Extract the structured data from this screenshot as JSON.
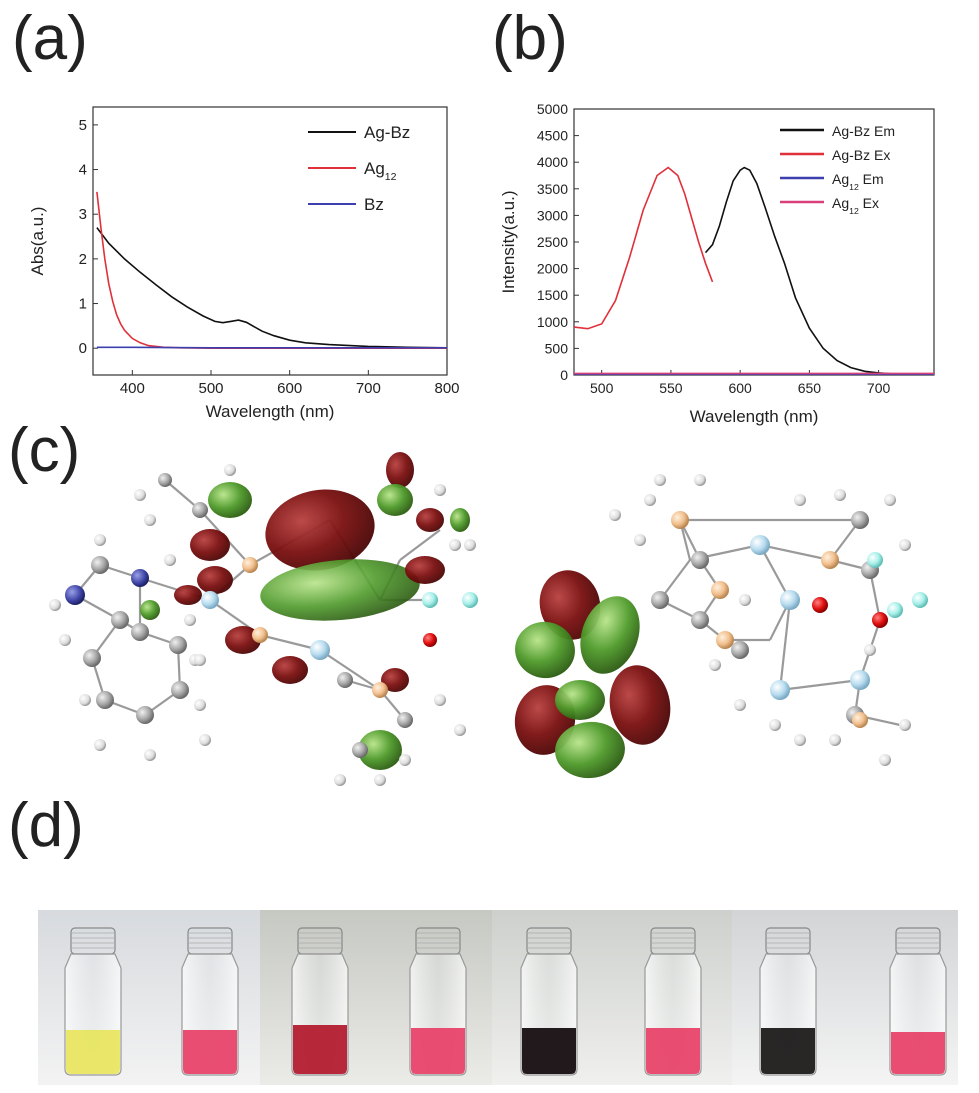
{
  "panel_labels": {
    "a": "(a)",
    "b": "(b)",
    "c": "(c)",
    "d": "(d)"
  },
  "colors": {
    "ag_bz": "#111111",
    "ag12": "#e0303a",
    "bz": "#3b3fb0",
    "ag12_ex": "#d8407a"
  },
  "chart_data": [
    {
      "type": "line",
      "panel": "(a)",
      "title": "",
      "xlabel": "Wavelength (nm)",
      "ylabel": "Abs(a.u.)",
      "xlim": [
        350,
        800
      ],
      "ylim": [
        -0.6,
        5.4
      ],
      "xticks": [
        400,
        500,
        600,
        700,
        800
      ],
      "yticks": [
        0,
        1,
        2,
        3,
        4,
        5
      ],
      "legend_position": "top-right",
      "series": [
        {
          "name": "Ag-Bz",
          "color": "#111111",
          "x": [
            355,
            370,
            390,
            410,
            430,
            450,
            470,
            490,
            505,
            515,
            525,
            535,
            545,
            555,
            565,
            580,
            600,
            620,
            650,
            700,
            750,
            800
          ],
          "y": [
            2.7,
            2.35,
            2.0,
            1.7,
            1.42,
            1.15,
            0.92,
            0.72,
            0.6,
            0.57,
            0.6,
            0.63,
            0.58,
            0.48,
            0.38,
            0.28,
            0.18,
            0.12,
            0.08,
            0.04,
            0.02,
            0.01
          ]
        },
        {
          "name": "Ag12",
          "name_base": "Ag",
          "name_sub": "12",
          "color": "#e0303a",
          "x": [
            355,
            360,
            365,
            370,
            375,
            380,
            385,
            390,
            400,
            410,
            420,
            440,
            460,
            500,
            600,
            700,
            800
          ],
          "y": [
            3.5,
            2.7,
            2.0,
            1.45,
            1.05,
            0.75,
            0.55,
            0.4,
            0.22,
            0.12,
            0.06,
            0.02,
            0.01,
            0.0,
            0.0,
            0.0,
            0.0
          ]
        },
        {
          "name": "Bz",
          "color": "#3b3fb0",
          "x": [
            355,
            400,
            500,
            600,
            700,
            800
          ],
          "y": [
            0.02,
            0.02,
            0.01,
            0.01,
            0.01,
            0.01
          ]
        }
      ]
    },
    {
      "type": "line",
      "panel": "(b)",
      "title": "",
      "xlabel": "Wavelength (nm)",
      "ylabel": "Intensity(a.u.)",
      "xlim": [
        480,
        740
      ],
      "ylim": [
        0,
        5000
      ],
      "xticks": [
        500,
        550,
        600,
        650,
        700
      ],
      "yticks": [
        0,
        500,
        1000,
        1500,
        2000,
        2500,
        3000,
        3500,
        4000,
        4500,
        5000
      ],
      "legend_position": "top-right",
      "series": [
        {
          "name": "Ag-Bz Em",
          "color": "#111111",
          "x": [
            575,
            580,
            585,
            590,
            595,
            600,
            603,
            607,
            612,
            618,
            625,
            632,
            640,
            650,
            660,
            670,
            680,
            690,
            700,
            710,
            720
          ],
          "y": [
            2300,
            2450,
            2800,
            3250,
            3650,
            3850,
            3900,
            3850,
            3600,
            3150,
            2600,
            2100,
            1450,
            880,
            500,
            270,
            140,
            70,
            40,
            20,
            10
          ]
        },
        {
          "name": "Ag-Bz Ex",
          "color": "#e0303a",
          "x": [
            480,
            490,
            500,
            510,
            520,
            530,
            540,
            548,
            555,
            560,
            565,
            570,
            575,
            580
          ],
          "y": [
            900,
            870,
            960,
            1400,
            2200,
            3100,
            3750,
            3900,
            3750,
            3400,
            2950,
            2500,
            2100,
            1750
          ]
        },
        {
          "name": "Ag12 Em",
          "name_base": "Ag",
          "name_sub": "12",
          "name_suffix": " Em",
          "color": "#3b3fb0",
          "x": [
            480,
            600,
            740
          ],
          "y": [
            15,
            15,
            15
          ]
        },
        {
          "name": "Ag12 Ex",
          "name_base": "Ag",
          "name_sub": "12",
          "name_suffix": " Ex",
          "color": "#d8407a",
          "x": [
            480,
            600,
            740
          ],
          "y": [
            30,
            30,
            30
          ]
        }
      ]
    }
  ]
}
